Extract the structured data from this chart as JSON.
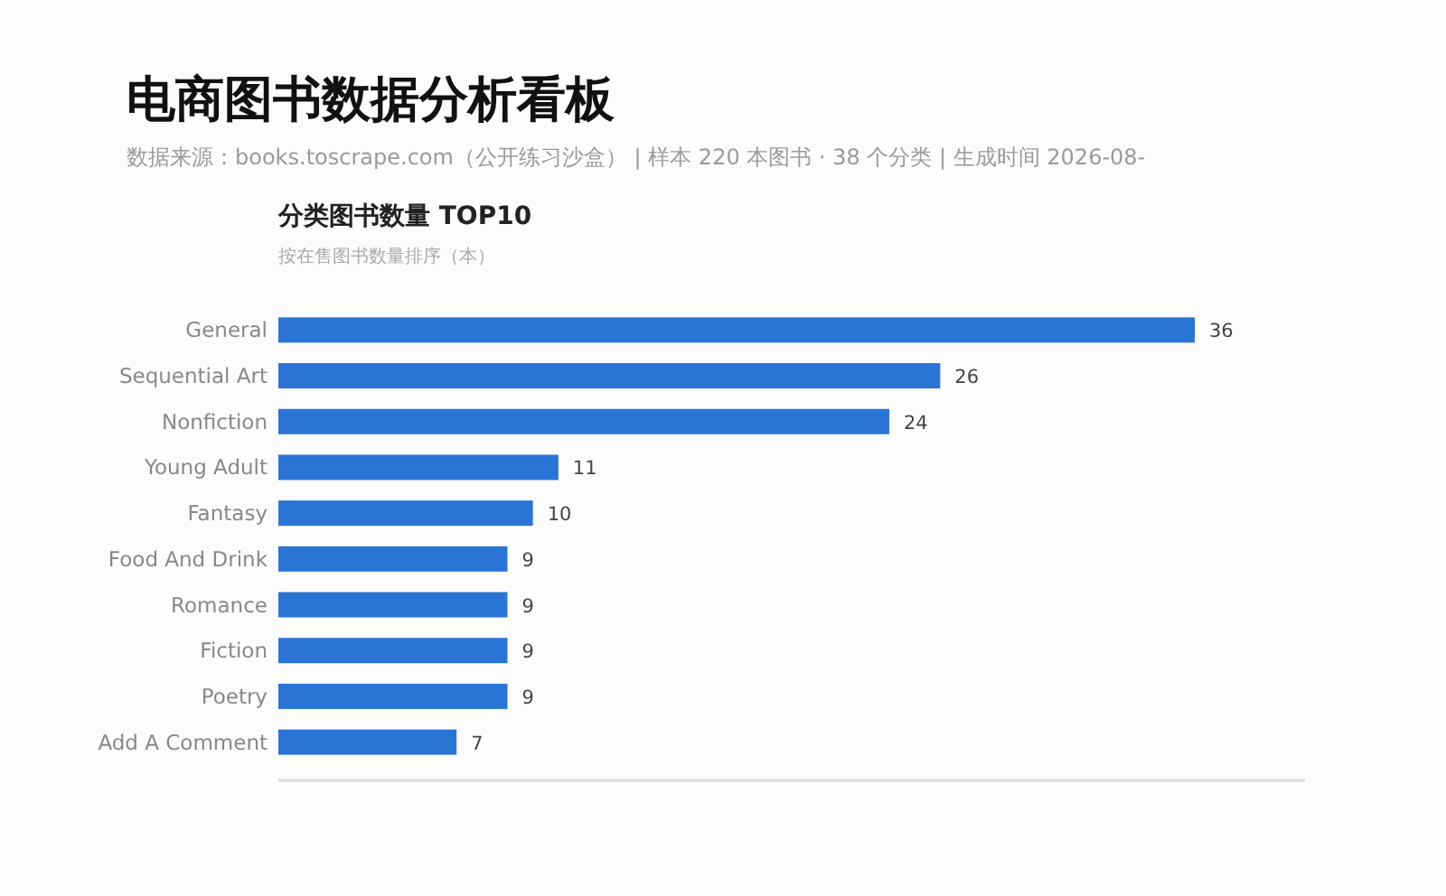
{
  "chart_data": {
    "type": "bar",
    "orientation": "horizontal",
    "title": "电商图书数据分析看板",
    "subtitle": "数据来源：books.toscrape.com（公开练习沙盒） | 样本 220 本图书 · 38 个分类 | 生成时间 2026-08-",
    "annotations": [
      "分类图书数量 TOP10",
      "按在售图书数量排序（本）"
    ],
    "categories": [
      "General",
      "Sequential Art",
      "Nonfiction",
      "Young Adult",
      "Fantasy",
      "Food And Drink",
      "Romance",
      "Fiction",
      "Poetry",
      "Add A Comment"
    ],
    "values": [
      36,
      26,
      24,
      11,
      10,
      9,
      9,
      9,
      9,
      7
    ],
    "color": "#2a74d6",
    "data_labels": true
  }
}
